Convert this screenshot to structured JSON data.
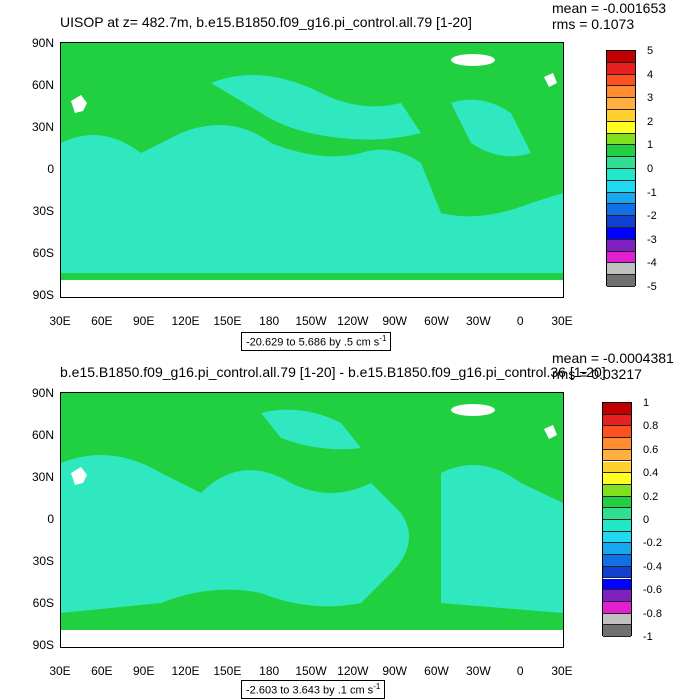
{
  "panels": [
    {
      "title": "UISOP at z= 482.7m, b.e15.B1850.f09_g16.pi_control.all.79 [1-20]",
      "mean": "mean = -0.001653",
      "rms": "rms = 0.1073",
      "range_label": "-20.629 to 5.686 by .5 cm s",
      "range_unit_exp": "-1",
      "colorbar": {
        "labels": [
          "5",
          "4",
          "3",
          "2",
          "1",
          "0",
          "-1",
          "-2",
          "-3",
          "-4",
          "-5"
        ],
        "colors": [
          "#c00000",
          "#e82020",
          "#ff5020",
          "#ff8c30",
          "#ffb040",
          "#ffd030",
          "#ffff20",
          "#80e020",
          "#20d040",
          "#30e090",
          "#20e8c8",
          "#20d8f0",
          "#18a8f0",
          "#1070e8",
          "#1040d0",
          "#0000ff",
          "#8020c0",
          "#e020d0",
          "#c0c0c0",
          "#707070"
        ]
      }
    },
    {
      "title": "b.e15.B1850.f09_g16.pi_control.all.79 [1-20] - b.e15.B1850.f09_g16.pi_control.36 [1-20]",
      "mean": "mean = -0.0004381",
      "rms": "rms = 0.03217",
      "range_label": "-2.603 to 3.643 by .1 cm s",
      "range_unit_exp": "-1",
      "colorbar": {
        "labels": [
          "1",
          "0.8",
          "0.6",
          "0.4",
          "0.2",
          "0",
          "-0.2",
          "-0.4",
          "-0.6",
          "-0.8",
          "-1"
        ],
        "colors": [
          "#c00000",
          "#e82020",
          "#ff5020",
          "#ff8c30",
          "#ffb040",
          "#ffd030",
          "#ffff20",
          "#80e020",
          "#20d040",
          "#30e090",
          "#20e8c8",
          "#20d8f0",
          "#18a8f0",
          "#1070e8",
          "#1040d0",
          "#0000ff",
          "#8020c0",
          "#e020d0",
          "#c0c0c0",
          "#707070"
        ]
      }
    }
  ],
  "axes": {
    "lat_labels": [
      "90N",
      "60N",
      "30N",
      "0",
      "30S",
      "60S",
      "90S"
    ],
    "lon_labels": [
      "30E",
      "60E",
      "90E",
      "120E",
      "150E",
      "180",
      "150W",
      "120W",
      "90W",
      "60W",
      "30W",
      "0",
      "30E"
    ]
  },
  "map_colors": {
    "background": "#20d040",
    "ocean": "#30e8c0",
    "missing": "#ffffff"
  }
}
